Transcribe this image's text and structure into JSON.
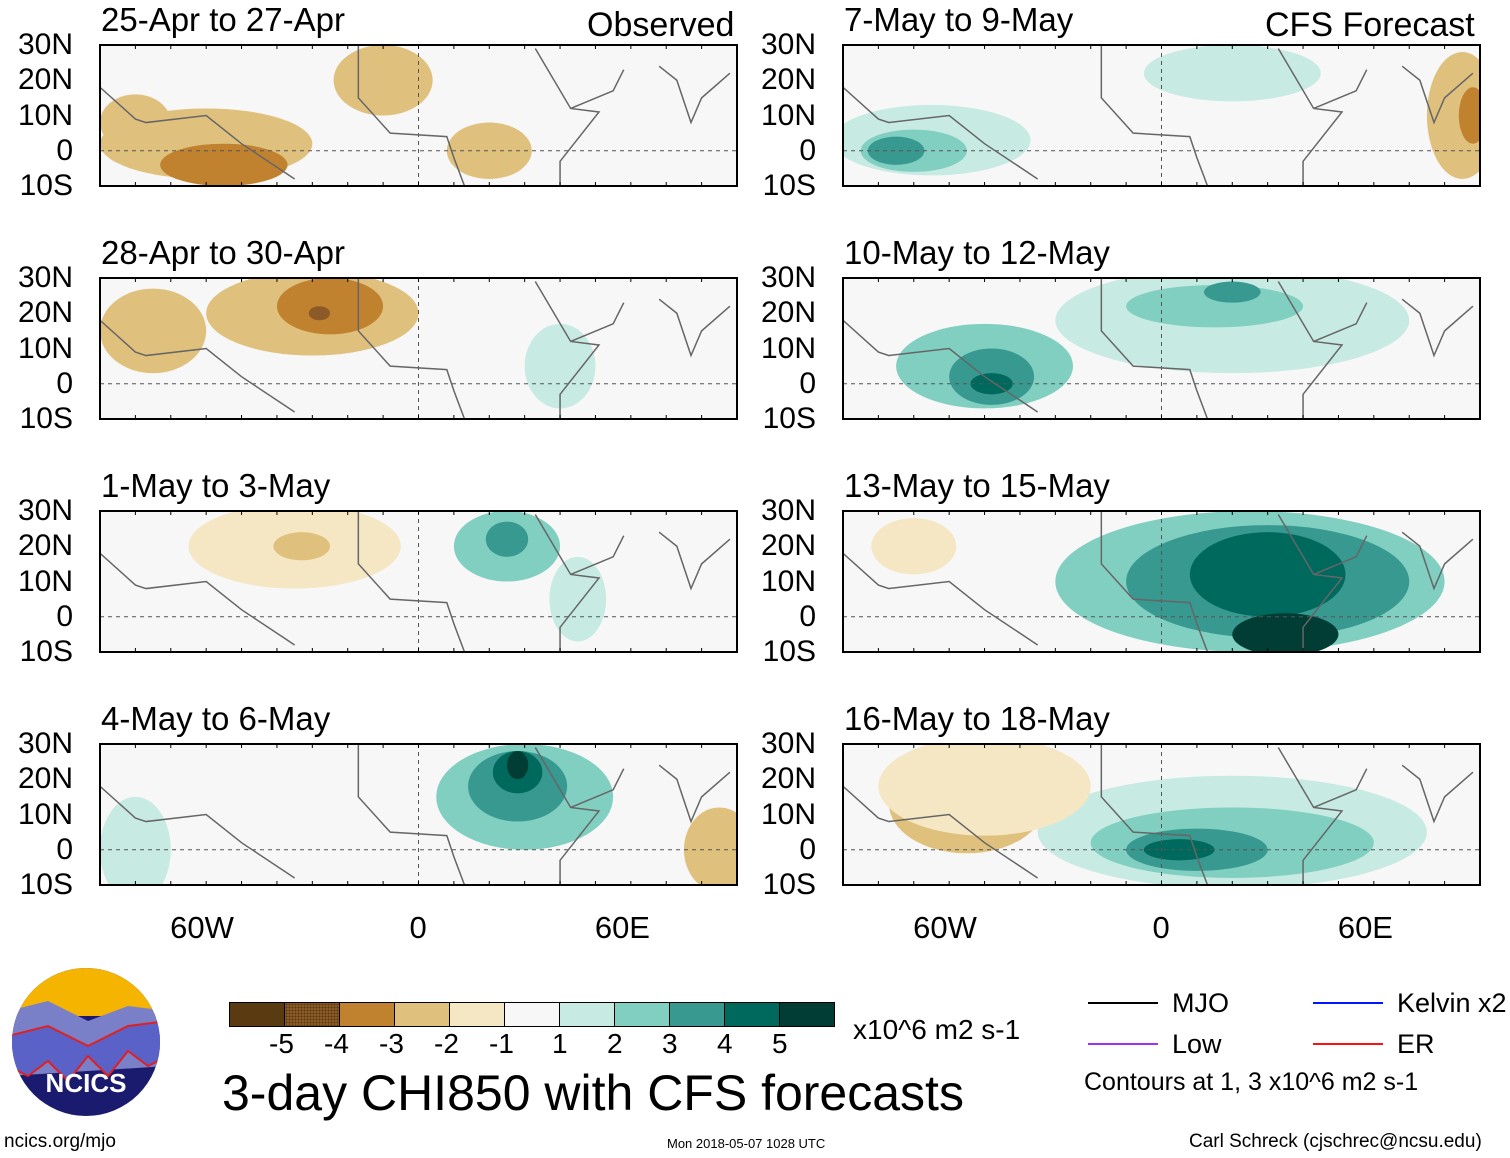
{
  "labels": {
    "observed": "Observed",
    "forecast": "CFS Forecast"
  },
  "panels": [
    {
      "title": "25-Apr to 27-Apr",
      "side": "left",
      "row": 0
    },
    {
      "title": "28-Apr to 30-Apr",
      "side": "left",
      "row": 1
    },
    {
      "title": "1-May to 3-May",
      "side": "left",
      "row": 2
    },
    {
      "title": "4-May to 6-May",
      "side": "left",
      "row": 3
    },
    {
      "title": "7-May to 9-May",
      "side": "right",
      "row": 0
    },
    {
      "title": "10-May to 12-May",
      "side": "right",
      "row": 1
    },
    {
      "title": "13-May to 15-May",
      "side": "right",
      "row": 2
    },
    {
      "title": "16-May to 18-May",
      "side": "right",
      "row": 3
    }
  ],
  "lat_labels": [
    "30N",
    "20N",
    "10N",
    "0",
    "10S"
  ],
  "lon_labels": [
    "60W",
    "0",
    "60E"
  ],
  "colorbar": {
    "levels": [
      "-5",
      "-4",
      "-3",
      "-2",
      "-1",
      "1",
      "2",
      "3",
      "4",
      "5"
    ],
    "colors": [
      "#5a3a10",
      "#8c5a28",
      "#c0822f",
      "#dfc17d",
      "#f5e7c4",
      "#f7f7f7",
      "#c7eae2",
      "#80cfc1",
      "#389990",
      "#00695e",
      "#013d35"
    ],
    "units": "x10^6 m2 s-1"
  },
  "title": "3-day CHI850 with CFS forecasts",
  "legend": {
    "items": [
      {
        "label": "MJO",
        "color": "#000000"
      },
      {
        "label": "Kelvin x2",
        "color": "#0018ff"
      },
      {
        "label": "Low",
        "color": "#a030f0"
      },
      {
        "label": "ER",
        "color": "#ff1010"
      }
    ],
    "note": "Contours at 1, 3 x10^6 m2 s-1"
  },
  "logo_text": "NCICS",
  "footer": {
    "url": "ncics.org/mjo",
    "timestamp": "Mon 2018-05-07 1028 UTC",
    "author": "Carl Schreck (cjschrec@ncsu.edu)"
  },
  "chart_data": {
    "type": "heatmap",
    "variable": "3-day CHI850 anomaly",
    "units": "x10^6 m2 s-1",
    "xlim": [
      -90,
      90
    ],
    "ylim": [
      -10,
      30
    ],
    "blobs": [
      [
        {
          "lon": -60,
          "lat": 2,
          "rlon": 30,
          "rlat": 10,
          "level": -2
        },
        {
          "lon": -55,
          "lat": -4,
          "rlon": 18,
          "rlat": 6,
          "level": -3
        },
        {
          "lon": -80,
          "lat": 8,
          "rlon": 10,
          "rlat": 8,
          "level": -2
        },
        {
          "lon": -10,
          "lat": 20,
          "rlon": 14,
          "rlat": 10,
          "level": -2
        },
        {
          "lon": 20,
          "lat": 0,
          "rlon": 12,
          "rlat": 8,
          "level": -2
        }
      ],
      [
        {
          "lon": -30,
          "lat": 20,
          "rlon": 30,
          "rlat": 12,
          "level": -2
        },
        {
          "lon": -25,
          "lat": 22,
          "rlon": 15,
          "rlat": 8,
          "level": -3
        },
        {
          "lon": -28,
          "lat": 20,
          "rlon": 3,
          "rlat": 2,
          "level": -4
        },
        {
          "lon": -75,
          "lat": 15,
          "rlon": 15,
          "rlat": 12,
          "level": -2
        },
        {
          "lon": 40,
          "lat": 5,
          "rlon": 10,
          "rlat": 12,
          "level": 1
        }
      ],
      [
        {
          "lon": -35,
          "lat": 20,
          "rlon": 30,
          "rlat": 12,
          "level": -1
        },
        {
          "lon": -33,
          "lat": 20,
          "rlon": 8,
          "rlat": 4,
          "level": -2
        },
        {
          "lon": 25,
          "lat": 20,
          "rlon": 15,
          "rlat": 10,
          "level": 2
        },
        {
          "lon": 25,
          "lat": 22,
          "rlon": 6,
          "rlat": 5,
          "level": 3
        },
        {
          "lon": 45,
          "lat": 5,
          "rlon": 8,
          "rlat": 12,
          "level": 1
        }
      ],
      [
        {
          "lon": 30,
          "lat": 15,
          "rlon": 25,
          "rlat": 15,
          "level": 2
        },
        {
          "lon": 28,
          "lat": 18,
          "rlon": 14,
          "rlat": 10,
          "level": 3
        },
        {
          "lon": 28,
          "lat": 22,
          "rlon": 7,
          "rlat": 6,
          "level": 4
        },
        {
          "lon": 28,
          "lat": 24,
          "rlon": 3,
          "rlat": 4,
          "level": 5
        },
        {
          "lon": 85,
          "lat": 0,
          "rlon": 10,
          "rlat": 12,
          "level": -2
        },
        {
          "lon": -80,
          "lat": 0,
          "rlon": 10,
          "rlat": 15,
          "level": 1
        }
      ],
      [
        {
          "lon": -65,
          "lat": 3,
          "rlon": 28,
          "rlat": 10,
          "level": 1
        },
        {
          "lon": -70,
          "lat": 0,
          "rlon": 15,
          "rlat": 6,
          "level": 2
        },
        {
          "lon": -75,
          "lat": 0,
          "rlon": 8,
          "rlat": 4,
          "level": 3
        },
        {
          "lon": 20,
          "lat": 22,
          "rlon": 25,
          "rlat": 8,
          "level": 1
        },
        {
          "lon": 85,
          "lat": 10,
          "rlon": 10,
          "rlat": 18,
          "level": -2
        },
        {
          "lon": 88,
          "lat": 10,
          "rlon": 4,
          "rlat": 8,
          "level": -3
        }
      ],
      [
        {
          "lon": -50,
          "lat": 5,
          "rlon": 25,
          "rlat": 12,
          "level": 2
        },
        {
          "lon": -48,
          "lat": 2,
          "rlon": 12,
          "rlat": 8,
          "level": 3
        },
        {
          "lon": -48,
          "lat": 0,
          "rlon": 6,
          "rlat": 3,
          "level": 4
        },
        {
          "lon": 20,
          "lat": 18,
          "rlon": 50,
          "rlat": 15,
          "level": 1
        },
        {
          "lon": 15,
          "lat": 22,
          "rlon": 25,
          "rlat": 6,
          "level": 2
        },
        {
          "lon": 20,
          "lat": 26,
          "rlon": 8,
          "rlat": 3,
          "level": 3
        }
      ],
      [
        {
          "lon": 25,
          "lat": 10,
          "rlon": 55,
          "rlat": 20,
          "level": 2
        },
        {
          "lon": 30,
          "lat": 10,
          "rlon": 40,
          "rlat": 16,
          "level": 3
        },
        {
          "lon": 30,
          "lat": 12,
          "rlon": 22,
          "rlat": 12,
          "level": 4
        },
        {
          "lon": 35,
          "lat": -5,
          "rlon": 15,
          "rlat": 6,
          "level": 5
        },
        {
          "lon": -70,
          "lat": 20,
          "rlon": 12,
          "rlat": 8,
          "level": -1
        }
      ],
      [
        {
          "lon": 20,
          "lat": 5,
          "rlon": 55,
          "rlat": 16,
          "level": 1
        },
        {
          "lon": 20,
          "lat": 2,
          "rlon": 40,
          "rlat": 10,
          "level": 2
        },
        {
          "lon": 10,
          "lat": 0,
          "rlon": 20,
          "rlat": 6,
          "level": 3
        },
        {
          "lon": 5,
          "lat": 0,
          "rlon": 10,
          "rlat": 3,
          "level": 4
        },
        {
          "lon": -55,
          "lat": 13,
          "rlon": 22,
          "rlat": 14,
          "level": -2
        },
        {
          "lon": -50,
          "lat": 18,
          "rlon": 30,
          "rlat": 14,
          "level": -1
        }
      ]
    ]
  }
}
